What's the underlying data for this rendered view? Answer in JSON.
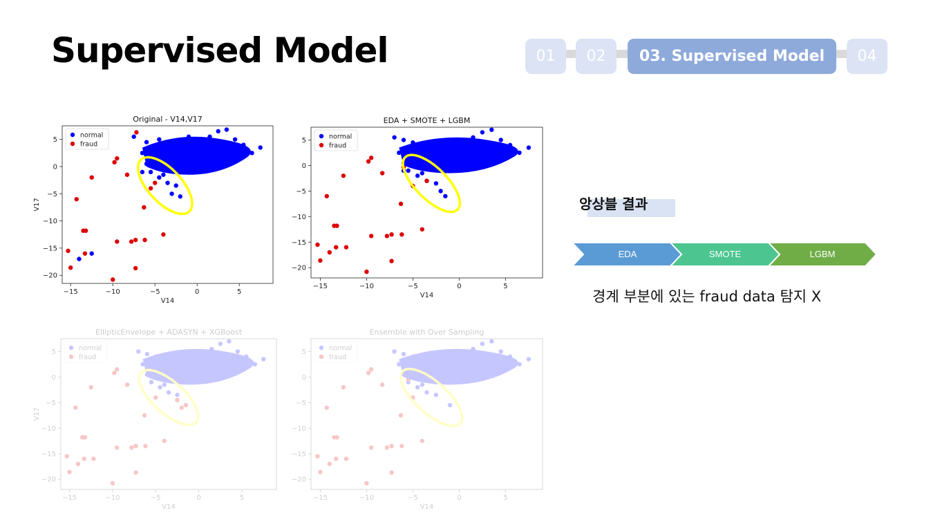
{
  "page": {
    "title": "Supervised Model",
    "nav": [
      "01",
      "02",
      "03. Supervised Model",
      "04"
    ],
    "active_step": 2
  },
  "result": {
    "heading": "앙상블 결과",
    "steps": [
      {
        "label": "EDA",
        "color": "#5b9bd5"
      },
      {
        "label": "SMOTE",
        "color": "#4dc591"
      },
      {
        "label": "LGBM",
        "color": "#70ad47"
      }
    ],
    "note": "경계 부분에 있는 fraud data 탐지 X"
  },
  "colors": {
    "normal": "#0000ff",
    "fraud": "#dd0000",
    "highlight": "#ffff00"
  },
  "chart_data": [
    {
      "type": "scatter",
      "title": "Original - V14,V17",
      "xlabel": "V14",
      "ylabel": "V17",
      "xlim": [
        -16,
        9
      ],
      "ylim": [
        -21.5,
        7.5
      ],
      "xticks": [
        -15,
        -10,
        -5,
        0,
        5
      ],
      "yticks": [
        5,
        0,
        -5,
        -10,
        -15,
        -20
      ],
      "legend": [
        "normal",
        "fraud"
      ],
      "legend_position": "top-left",
      "ellipse": {
        "cx": -3.8,
        "cy": -3.5,
        "rx": 4.2,
        "ry": 1.4,
        "angle_deg": 47
      },
      "series": [
        {
          "name": "normal",
          "points": [
            [
              -7.5,
              5.5
            ],
            [
              -6.0,
              4.5
            ],
            [
              -4.5,
              5.0
            ],
            [
              -3.5,
              4.2
            ],
            [
              -2.5,
              3.5
            ],
            [
              -1.0,
              5.5
            ],
            [
              0.5,
              4.5
            ],
            [
              1.5,
              5.5
            ],
            [
              2.5,
              6.5
            ],
            [
              3.5,
              6.8
            ],
            [
              4.5,
              5.0
            ],
            [
              5.5,
              4.0
            ],
            [
              7.5,
              3.5
            ],
            [
              6.5,
              2.5
            ],
            [
              4.0,
              3.0
            ],
            [
              2.0,
              3.5
            ],
            [
              0.0,
              3.0
            ],
            [
              -1.5,
              2.0
            ],
            [
              -3.0,
              1.0
            ],
            [
              -5.0,
              1.5
            ],
            [
              -6.5,
              2.5
            ],
            [
              -6.0,
              0.5
            ],
            [
              -5.5,
              -1.0
            ],
            [
              -4.5,
              -2.0
            ],
            [
              -3.5,
              -3.0
            ],
            [
              -2.5,
              -3.5
            ],
            [
              -2.0,
              -5.5
            ],
            [
              -3.0,
              -5.0
            ],
            [
              -4.0,
              -1.5
            ],
            [
              -6.5,
              -1.0
            ],
            [
              -14.0,
              -17.0
            ],
            [
              -12.5,
              -16.0
            ]
          ]
        },
        {
          "name": "fraud",
          "points": [
            [
              -7.2,
              6.3
            ],
            [
              -9.5,
              1.5
            ],
            [
              -9.8,
              0.8
            ],
            [
              -8.3,
              -1.5
            ],
            [
              -12.5,
              -2.0
            ],
            [
              -14.3,
              -6.0
            ],
            [
              -13.5,
              -11.8
            ],
            [
              -13.2,
              -11.8
            ],
            [
              -15.3,
              -15.5
            ],
            [
              -15.0,
              -18.6
            ],
            [
              -13.3,
              -16.0
            ],
            [
              -10.0,
              -20.8
            ],
            [
              -9.5,
              -13.8
            ],
            [
              -7.8,
              -13.8
            ],
            [
              -7.3,
              -13.5
            ],
            [
              -6.2,
              -13.5
            ],
            [
              -6.3,
              -7.5
            ],
            [
              -7.3,
              -18.7
            ],
            [
              -4.0,
              -12.5
            ],
            [
              -2.0,
              1.5
            ],
            [
              -1.8,
              0.8
            ],
            [
              0.5,
              -0.3
            ],
            [
              -5.5,
              -4.0
            ],
            [
              -5.0,
              -3.0
            ]
          ]
        }
      ]
    },
    {
      "type": "scatter",
      "title": "EDA + SMOTE + LGBM",
      "xlabel": "V14",
      "ylabel": "",
      "xlim": [
        -16,
        9
      ],
      "ylim": [
        -22,
        7.5
      ],
      "xticks": [
        -15,
        -10,
        -5,
        0,
        5
      ],
      "yticks": [
        5,
        0,
        -5,
        -10,
        -15,
        -20
      ],
      "legend": [
        "normal",
        "fraud"
      ],
      "legend_position": "top-left",
      "ellipse": {
        "cx": -3.0,
        "cy": -3.5,
        "rx": 4.0,
        "ry": 1.4,
        "angle_deg": 45
      },
      "series": [
        {
          "name": "normal",
          "points": [
            [
              -7.0,
              5.5
            ],
            [
              -6.0,
              5.0
            ],
            [
              -5.0,
              4.5
            ],
            [
              -4.0,
              4.0
            ],
            [
              -3.0,
              3.5
            ],
            [
              -1.0,
              5.0
            ],
            [
              0.5,
              4.5
            ],
            [
              1.5,
              5.5
            ],
            [
              2.5,
              6.5
            ],
            [
              3.5,
              7.0
            ],
            [
              4.5,
              5.0
            ],
            [
              5.5,
              4.0
            ],
            [
              7.5,
              3.5
            ],
            [
              6.5,
              2.5
            ],
            [
              4.0,
              3.0
            ],
            [
              2.0,
              3.5
            ],
            [
              0.0,
              3.0
            ],
            [
              -1.5,
              2.0
            ],
            [
              -3.0,
              1.0
            ],
            [
              -5.0,
              1.5
            ],
            [
              -6.5,
              2.5
            ],
            [
              -6.0,
              0.5
            ],
            [
              -5.5,
              -1.0
            ],
            [
              -4.5,
              -2.0
            ],
            [
              -3.5,
              -3.0
            ],
            [
              -2.5,
              -3.5
            ],
            [
              -1.5,
              -6.0
            ],
            [
              -2.0,
              -5.0
            ],
            [
              -4.0,
              -1.5
            ],
            [
              -6.0,
              -1.0
            ]
          ]
        },
        {
          "name": "fraud",
          "points": [
            [
              -3.5,
              4.5
            ],
            [
              -9.5,
              1.5
            ],
            [
              -9.8,
              0.8
            ],
            [
              -8.3,
              -1.5
            ],
            [
              -12.5,
              -2.0
            ],
            [
              -14.3,
              -6.0
            ],
            [
              -13.5,
              -11.8
            ],
            [
              -13.2,
              -11.8
            ],
            [
              -15.3,
              -15.5
            ],
            [
              -15.0,
              -18.6
            ],
            [
              -13.3,
              -16.0
            ],
            [
              -12.2,
              -16.0
            ],
            [
              -14.0,
              -17.0
            ],
            [
              -10.0,
              -20.8
            ],
            [
              -9.5,
              -13.8
            ],
            [
              -7.8,
              -13.8
            ],
            [
              -7.3,
              -13.5
            ],
            [
              -6.2,
              -13.5
            ],
            [
              -6.3,
              -7.5
            ],
            [
              -7.3,
              -18.7
            ],
            [
              -4.0,
              -12.5
            ],
            [
              -6.0,
              -0.3
            ],
            [
              -5.0,
              -4.0
            ],
            [
              -3.5,
              -3.0
            ]
          ]
        }
      ]
    },
    {
      "type": "scatter",
      "title": "EllipticEnvelope + ADASYN + XGBoost",
      "xlabel": "V14",
      "ylabel": "V17",
      "xlim": [
        -16,
        9
      ],
      "ylim": [
        -22,
        7.5
      ],
      "xticks": [
        -15,
        -10,
        -5,
        0,
        5
      ],
      "yticks": [
        5,
        0,
        -5,
        -10,
        -15,
        -20
      ],
      "legend": [
        "normal",
        "fraud"
      ],
      "legend_position": "top-left",
      "ellipse": {
        "cx": -3.5,
        "cy": -4.0,
        "rx": 4.3,
        "ry": 1.4,
        "angle_deg": 42
      },
      "series": [
        {
          "name": "normal",
          "points": [
            [
              -7.0,
              5.0
            ],
            [
              -6.0,
              4.5
            ],
            [
              -5.0,
              4.0
            ],
            [
              -4.0,
              3.8
            ],
            [
              -3.0,
              3.5
            ],
            [
              -1.0,
              5.0
            ],
            [
              0.5,
              4.5
            ],
            [
              1.5,
              5.5
            ],
            [
              2.5,
              6.5
            ],
            [
              3.5,
              7.0
            ],
            [
              4.5,
              5.0
            ],
            [
              5.5,
              4.0
            ],
            [
              7.5,
              3.5
            ],
            [
              6.5,
              2.5
            ],
            [
              4.0,
              3.0
            ],
            [
              2.0,
              3.5
            ],
            [
              0.0,
              3.0
            ],
            [
              -1.5,
              2.0
            ],
            [
              -3.0,
              1.0
            ],
            [
              -5.0,
              1.5
            ],
            [
              -6.5,
              2.5
            ],
            [
              -6.0,
              0.5
            ],
            [
              -5.5,
              -1.0
            ],
            [
              -4.5,
              -2.0
            ],
            [
              -3.5,
              -3.0
            ],
            [
              -2.5,
              -3.5
            ],
            [
              -4.0,
              -1.5
            ]
          ]
        },
        {
          "name": "fraud",
          "points": [
            [
              -9.5,
              1.5
            ],
            [
              -9.8,
              0.8
            ],
            [
              -8.3,
              -1.5
            ],
            [
              -12.5,
              -2.0
            ],
            [
              -14.3,
              -6.0
            ],
            [
              -13.5,
              -11.8
            ],
            [
              -13.2,
              -11.8
            ],
            [
              -15.3,
              -15.5
            ],
            [
              -15.0,
              -18.6
            ],
            [
              -13.3,
              -16.0
            ],
            [
              -12.2,
              -16.0
            ],
            [
              -14.0,
              -17.0
            ],
            [
              -10.0,
              -20.8
            ],
            [
              -9.5,
              -13.8
            ],
            [
              -7.8,
              -13.8
            ],
            [
              -7.3,
              -13.5
            ],
            [
              -6.2,
              -13.5
            ],
            [
              -6.3,
              -7.5
            ],
            [
              -7.3,
              -18.7
            ],
            [
              -4.0,
              -12.5
            ],
            [
              -5.0,
              -4.0
            ],
            [
              -2.5,
              -4.5
            ],
            [
              -2.0,
              -6.0
            ],
            [
              -1.5,
              -5.5
            ]
          ]
        }
      ]
    },
    {
      "type": "scatter",
      "title": "Ensemble with Over Sampling",
      "xlabel": "V14",
      "ylabel": "",
      "xlim": [
        -16,
        9
      ],
      "ylim": [
        -22,
        7.5
      ],
      "xticks": [
        -15,
        -10,
        -5,
        0,
        5
      ],
      "yticks": [
        5,
        0,
        -5,
        -10,
        -15,
        -20
      ],
      "legend": [
        "normal",
        "fraud"
      ],
      "legend_position": "top-left",
      "ellipse": {
        "cx": -3.0,
        "cy": -4.0,
        "rx": 4.2,
        "ry": 1.4,
        "angle_deg": 42
      },
      "series": [
        {
          "name": "normal",
          "points": [
            [
              -7.0,
              5.0
            ],
            [
              -6.0,
              4.5
            ],
            [
              -5.0,
              4.0
            ],
            [
              -4.0,
              3.8
            ],
            [
              -3.0,
              3.5
            ],
            [
              -1.0,
              5.0
            ],
            [
              0.5,
              4.5
            ],
            [
              1.5,
              5.5
            ],
            [
              2.5,
              6.5
            ],
            [
              3.5,
              7.0
            ],
            [
              4.5,
              5.0
            ],
            [
              5.5,
              4.0
            ],
            [
              7.5,
              3.5
            ],
            [
              6.5,
              2.5
            ],
            [
              4.0,
              3.0
            ],
            [
              2.0,
              3.5
            ],
            [
              0.0,
              3.0
            ],
            [
              -1.5,
              2.0
            ],
            [
              -3.0,
              1.0
            ],
            [
              -5.0,
              1.5
            ],
            [
              -6.5,
              2.5
            ],
            [
              -6.0,
              0.5
            ],
            [
              -5.5,
              -1.0
            ],
            [
              -4.5,
              -2.0
            ],
            [
              -3.5,
              -3.0
            ],
            [
              -2.5,
              -3.5
            ],
            [
              -1.0,
              -5.5
            ],
            [
              -4.0,
              -1.5
            ]
          ]
        },
        {
          "name": "fraud",
          "points": [
            [
              -9.5,
              1.5
            ],
            [
              -9.8,
              0.8
            ],
            [
              -8.3,
              -1.5
            ],
            [
              -12.5,
              -2.0
            ],
            [
              -14.3,
              -6.0
            ],
            [
              -13.5,
              -11.8
            ],
            [
              -13.2,
              -11.8
            ],
            [
              -15.3,
              -15.5
            ],
            [
              -15.0,
              -18.6
            ],
            [
              -13.3,
              -16.0
            ],
            [
              -12.2,
              -16.0
            ],
            [
              -14.0,
              -17.0
            ],
            [
              -10.0,
              -20.8
            ],
            [
              -9.5,
              -13.8
            ],
            [
              -7.8,
              -13.8
            ],
            [
              -7.3,
              -13.5
            ],
            [
              -6.2,
              -13.5
            ],
            [
              -6.3,
              -7.5
            ],
            [
              -7.3,
              -18.7
            ],
            [
              -4.0,
              -12.5
            ],
            [
              -5.5,
              -0.5
            ],
            [
              -5.0,
              -4.0
            ]
          ]
        }
      ]
    }
  ]
}
